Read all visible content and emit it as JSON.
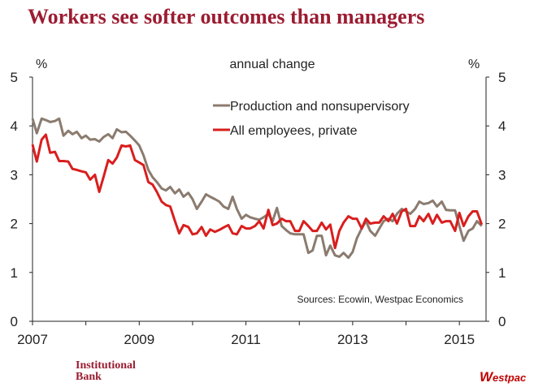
{
  "title": "Workers see softer outcomes than managers",
  "brand": {
    "line1": "Institutional",
    "line2": "Bank",
    "wp_initial": "W",
    "wp_rest": "estpac"
  },
  "colors": {
    "title": "#9b1c31",
    "production": "#8b7b6f",
    "all_employees": "#d91e1e"
  },
  "chart_data": {
    "type": "line",
    "subtitle": "annual change",
    "y_unit_left": "%",
    "y_unit_right": "%",
    "ylim": [
      0,
      5
    ],
    "yticks": [
      "0",
      "1",
      "2",
      "3",
      "4",
      "5"
    ],
    "xlim": [
      2007.0,
      2015.5
    ],
    "xticks": [
      "2007",
      "2009",
      "2011",
      "2013",
      "2015"
    ],
    "grid": false,
    "legend_position": "top-center",
    "source": "Sources: Ecowin, Westpac Economics",
    "series": [
      {
        "name": "Production and nonsupervisory",
        "color": "#8b7b6f",
        "points": [
          [
            2007.0,
            4.15
          ],
          [
            2007.08,
            3.85
          ],
          [
            2007.17,
            4.15
          ],
          [
            2007.25,
            4.12
          ],
          [
            2007.33,
            4.08
          ],
          [
            2007.42,
            4.1
          ],
          [
            2007.5,
            4.15
          ],
          [
            2007.58,
            3.8
          ],
          [
            2007.67,
            3.9
          ],
          [
            2007.75,
            3.83
          ],
          [
            2007.83,
            3.88
          ],
          [
            2007.92,
            3.75
          ],
          [
            2008.0,
            3.8
          ],
          [
            2008.08,
            3.72
          ],
          [
            2008.17,
            3.73
          ],
          [
            2008.25,
            3.68
          ],
          [
            2008.33,
            3.77
          ],
          [
            2008.42,
            3.83
          ],
          [
            2008.5,
            3.75
          ],
          [
            2008.58,
            3.93
          ],
          [
            2008.67,
            3.87
          ],
          [
            2008.75,
            3.88
          ],
          [
            2008.83,
            3.8
          ],
          [
            2008.92,
            3.7
          ],
          [
            2009.0,
            3.6
          ],
          [
            2009.08,
            3.4
          ],
          [
            2009.17,
            3.1
          ],
          [
            2009.25,
            2.95
          ],
          [
            2009.33,
            2.85
          ],
          [
            2009.42,
            2.72
          ],
          [
            2009.5,
            2.68
          ],
          [
            2009.58,
            2.75
          ],
          [
            2009.67,
            2.62
          ],
          [
            2009.75,
            2.7
          ],
          [
            2009.83,
            2.55
          ],
          [
            2009.92,
            2.63
          ],
          [
            2010.0,
            2.5
          ],
          [
            2010.08,
            2.3
          ],
          [
            2010.17,
            2.45
          ],
          [
            2010.25,
            2.6
          ],
          [
            2010.33,
            2.55
          ],
          [
            2010.42,
            2.5
          ],
          [
            2010.5,
            2.45
          ],
          [
            2010.58,
            2.35
          ],
          [
            2010.67,
            2.3
          ],
          [
            2010.75,
            2.55
          ],
          [
            2010.83,
            2.3
          ],
          [
            2010.92,
            2.1
          ],
          [
            2011.0,
            2.18
          ],
          [
            2011.08,
            2.13
          ],
          [
            2011.17,
            2.1
          ],
          [
            2011.25,
            2.08
          ],
          [
            2011.33,
            2.13
          ],
          [
            2011.42,
            2.2
          ],
          [
            2011.5,
            2.05
          ],
          [
            2011.58,
            2.32
          ],
          [
            2011.67,
            1.95
          ],
          [
            2011.75,
            1.87
          ],
          [
            2011.83,
            1.8
          ],
          [
            2011.92,
            1.78
          ],
          [
            2012.0,
            1.78
          ],
          [
            2012.08,
            1.78
          ],
          [
            2012.17,
            1.4
          ],
          [
            2012.25,
            1.45
          ],
          [
            2012.33,
            1.75
          ],
          [
            2012.42,
            1.75
          ],
          [
            2012.5,
            1.35
          ],
          [
            2012.58,
            1.55
          ],
          [
            2012.67,
            1.35
          ],
          [
            2012.75,
            1.32
          ],
          [
            2012.83,
            1.4
          ],
          [
            2012.92,
            1.3
          ],
          [
            2013.0,
            1.42
          ],
          [
            2013.08,
            1.7
          ],
          [
            2013.17,
            1.9
          ],
          [
            2013.25,
            2.05
          ],
          [
            2013.33,
            1.85
          ],
          [
            2013.42,
            1.75
          ],
          [
            2013.5,
            1.9
          ],
          [
            2013.58,
            2.05
          ],
          [
            2013.67,
            2.1
          ],
          [
            2013.75,
            2.05
          ],
          [
            2013.83,
            2.2
          ],
          [
            2013.92,
            2.3
          ],
          [
            2014.0,
            2.25
          ],
          [
            2014.08,
            2.2
          ],
          [
            2014.17,
            2.3
          ],
          [
            2014.25,
            2.45
          ],
          [
            2014.33,
            2.4
          ],
          [
            2014.42,
            2.42
          ],
          [
            2014.5,
            2.47
          ],
          [
            2014.58,
            2.35
          ],
          [
            2014.67,
            2.45
          ],
          [
            2014.75,
            2.28
          ],
          [
            2014.83,
            2.27
          ],
          [
            2014.92,
            2.27
          ],
          [
            2015.0,
            1.95
          ],
          [
            2015.08,
            1.65
          ],
          [
            2015.17,
            1.85
          ],
          [
            2015.25,
            1.9
          ],
          [
            2015.33,
            2.05
          ],
          [
            2015.42,
            1.95
          ]
        ]
      },
      {
        "name": "All employees, private",
        "color": "#d91e1e",
        "points": [
          [
            2007.0,
            3.62
          ],
          [
            2007.08,
            3.27
          ],
          [
            2007.17,
            3.72
          ],
          [
            2007.25,
            3.82
          ],
          [
            2007.33,
            3.45
          ],
          [
            2007.42,
            3.47
          ],
          [
            2007.5,
            3.28
          ],
          [
            2007.58,
            3.28
          ],
          [
            2007.67,
            3.27
          ],
          [
            2007.75,
            3.12
          ],
          [
            2007.83,
            3.1
          ],
          [
            2007.92,
            3.07
          ],
          [
            2008.0,
            3.05
          ],
          [
            2008.08,
            2.9
          ],
          [
            2008.17,
            3.0
          ],
          [
            2008.25,
            2.65
          ],
          [
            2008.33,
            2.95
          ],
          [
            2008.42,
            3.3
          ],
          [
            2008.5,
            3.23
          ],
          [
            2008.58,
            3.35
          ],
          [
            2008.67,
            3.6
          ],
          [
            2008.75,
            3.58
          ],
          [
            2008.83,
            3.6
          ],
          [
            2008.92,
            3.3
          ],
          [
            2009.0,
            3.25
          ],
          [
            2009.08,
            3.2
          ],
          [
            2009.17,
            2.85
          ],
          [
            2009.25,
            2.8
          ],
          [
            2009.33,
            2.65
          ],
          [
            2009.42,
            2.45
          ],
          [
            2009.5,
            2.38
          ],
          [
            2009.58,
            2.35
          ],
          [
            2009.67,
            2.05
          ],
          [
            2009.75,
            1.8
          ],
          [
            2009.83,
            1.97
          ],
          [
            2009.92,
            1.93
          ],
          [
            2010.0,
            1.78
          ],
          [
            2010.08,
            1.8
          ],
          [
            2010.17,
            1.93
          ],
          [
            2010.25,
            1.75
          ],
          [
            2010.33,
            1.88
          ],
          [
            2010.42,
            1.83
          ],
          [
            2010.5,
            1.87
          ],
          [
            2010.58,
            1.92
          ],
          [
            2010.67,
            1.97
          ],
          [
            2010.75,
            1.8
          ],
          [
            2010.83,
            1.78
          ],
          [
            2010.92,
            1.95
          ],
          [
            2011.0,
            1.9
          ],
          [
            2011.08,
            1.9
          ],
          [
            2011.17,
            1.95
          ],
          [
            2011.25,
            2.05
          ],
          [
            2011.33,
            1.9
          ],
          [
            2011.42,
            2.28
          ],
          [
            2011.5,
            1.97
          ],
          [
            2011.58,
            2.0
          ],
          [
            2011.67,
            2.1
          ],
          [
            2011.75,
            2.05
          ],
          [
            2011.83,
            2.05
          ],
          [
            2011.92,
            1.85
          ],
          [
            2012.0,
            1.85
          ],
          [
            2012.08,
            2.05
          ],
          [
            2012.17,
            1.95
          ],
          [
            2012.25,
            1.85
          ],
          [
            2012.33,
            1.85
          ],
          [
            2012.42,
            2.02
          ],
          [
            2012.5,
            1.88
          ],
          [
            2012.58,
            1.98
          ],
          [
            2012.67,
            1.5
          ],
          [
            2012.75,
            1.85
          ],
          [
            2012.83,
            2.02
          ],
          [
            2012.92,
            2.15
          ],
          [
            2013.0,
            2.1
          ],
          [
            2013.08,
            2.1
          ],
          [
            2013.17,
            1.9
          ],
          [
            2013.25,
            2.1
          ],
          [
            2013.33,
            2.0
          ],
          [
            2013.42,
            2.02
          ],
          [
            2013.5,
            2.02
          ],
          [
            2013.58,
            2.15
          ],
          [
            2013.67,
            2.05
          ],
          [
            2013.75,
            2.2
          ],
          [
            2013.83,
            2.0
          ],
          [
            2013.92,
            2.25
          ],
          [
            2014.0,
            2.3
          ],
          [
            2014.08,
            1.95
          ],
          [
            2014.17,
            1.95
          ],
          [
            2014.25,
            2.15
          ],
          [
            2014.33,
            2.05
          ],
          [
            2014.42,
            2.2
          ],
          [
            2014.5,
            2.0
          ],
          [
            2014.58,
            2.18
          ],
          [
            2014.67,
            2.02
          ],
          [
            2014.75,
            2.05
          ],
          [
            2014.83,
            2.05
          ],
          [
            2014.92,
            1.85
          ],
          [
            2015.0,
            2.22
          ],
          [
            2015.08,
            1.95
          ],
          [
            2015.17,
            2.15
          ],
          [
            2015.25,
            2.25
          ],
          [
            2015.33,
            2.25
          ],
          [
            2015.42,
            1.98
          ]
        ]
      }
    ]
  }
}
